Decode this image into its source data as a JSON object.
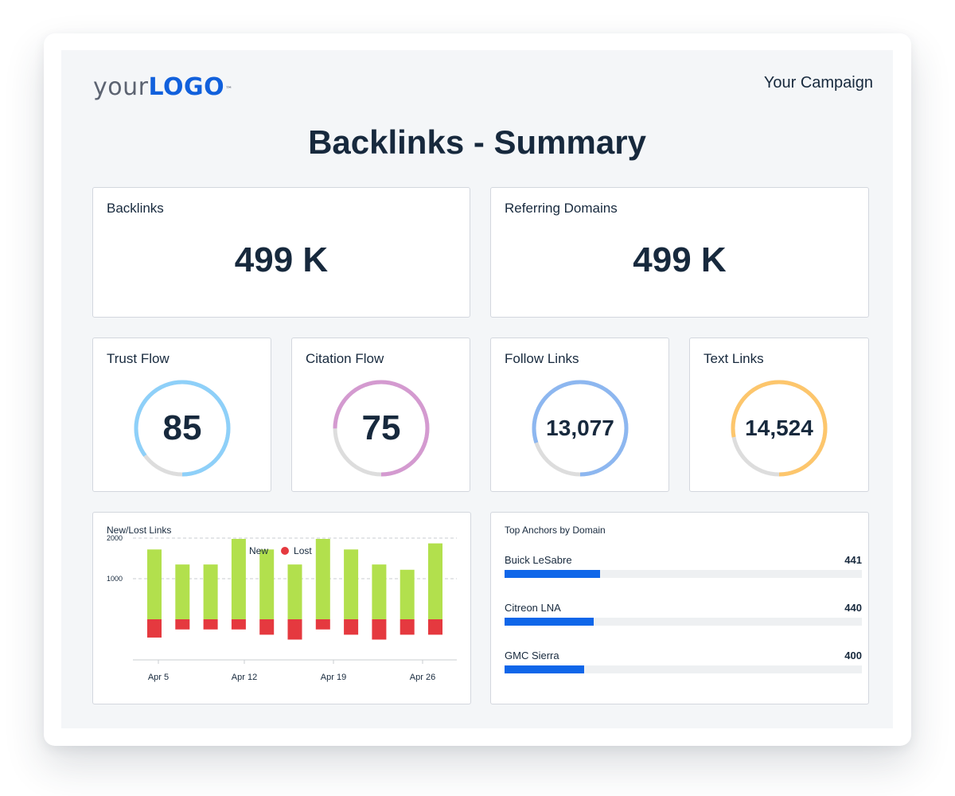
{
  "header": {
    "logo_part1": "your",
    "logo_part2": "LOGO",
    "logo_tm": "™",
    "campaign": "Your Campaign",
    "title": "Backlinks - Summary"
  },
  "kpis": {
    "backlinks": {
      "label": "Backlinks",
      "value": "499 K"
    },
    "referring_domains": {
      "label": "Referring Domains",
      "value": "499 K"
    }
  },
  "gauges": [
    {
      "label": "Trust Flow",
      "value": "85",
      "fraction": 0.85,
      "color": "#8ed0f9"
    },
    {
      "label": "Citation Flow",
      "value": "75",
      "fraction": 0.75,
      "color": "#d49ad0"
    },
    {
      "label": "Follow Links",
      "value": "13,077",
      "fraction": 0.8,
      "color": "#8db7f0"
    },
    {
      "label": "Text Links",
      "value": "14,524",
      "fraction": 0.78,
      "color": "#fdc66c"
    }
  ],
  "gauge_track_color": "#dddddd",
  "new_lost": {
    "title": "New/Lost Links",
    "legend": [
      {
        "label": "New",
        "color": "#b2e04d"
      },
      {
        "label": "Lost",
        "color": "#e5393f"
      }
    ]
  },
  "chart_data": {
    "type": "bar",
    "title": "New/Lost Links",
    "x_tick_labels": [
      "Apr 5",
      "Apr 12",
      "Apr 19",
      "Apr 26"
    ],
    "y_ticks": [
      1000,
      2000
    ],
    "ylim": [
      -1000,
      2000
    ],
    "grid": "dashed horizontal at 1000 and 2000",
    "legend_position": "top",
    "series": [
      {
        "name": "New",
        "color": "#b2e04d",
        "values": [
          1720,
          1350,
          1350,
          1980,
          1720,
          1350,
          1980,
          1720,
          1350,
          1220,
          1870
        ]
      },
      {
        "name": "Lost",
        "color": "#e5393f",
        "values": [
          -450,
          -250,
          -250,
          -250,
          -380,
          -500,
          -250,
          -380,
          -500,
          -380,
          -380
        ]
      }
    ]
  },
  "anchors": {
    "title": "Top Anchors by Domain",
    "items": [
      {
        "name": "Buick LeSabre",
        "count": "441",
        "fraction": 0.267
      },
      {
        "name": "Citreon LNA",
        "count": "440",
        "fraction": 0.249
      },
      {
        "name": "GMC Sierra",
        "count": "400",
        "fraction": 0.222
      }
    ],
    "bar_color": "#0f66e9",
    "track_color": "#eef0f2"
  }
}
